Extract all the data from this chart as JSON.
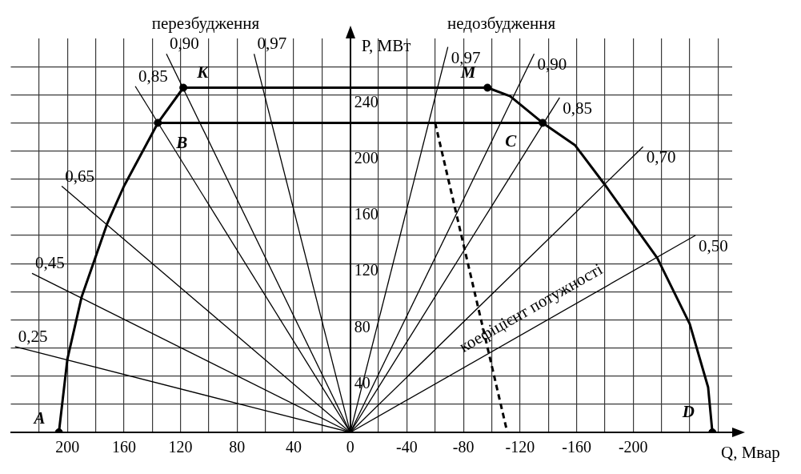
{
  "chart_data": {
    "type": "line",
    "xlabel": "Q, Мвар",
    "ylabel": "P, МВт",
    "xlim": [
      240,
      -270
    ],
    "ylim": [
      0,
      280
    ],
    "xticks": [
      {
        "value": 220,
        "label": null
      },
      200,
      {
        "value": 180,
        "label": null
      },
      160,
      {
        "value": 140,
        "label": null
      },
      120,
      {
        "value": 100,
        "label": null
      },
      80,
      {
        "value": 60,
        "label": null
      },
      40,
      {
        "value": 20,
        "label": null
      },
      0,
      {
        "value": -20,
        "label": null
      },
      -40,
      {
        "value": -60,
        "label": null
      },
      -80,
      {
        "value": -100,
        "label": null
      },
      -120,
      {
        "value": -140,
        "label": null
      },
      -160,
      {
        "value": -180,
        "label": null
      },
      -200,
      {
        "value": -220,
        "label": null
      },
      {
        "value": -240,
        "label": null
      },
      {
        "value": -260,
        "label": null
      }
    ],
    "yticks": [
      {
        "value": 0,
        "label": null
      },
      {
        "value": 20,
        "label": null
      },
      40,
      {
        "value": 60,
        "label": null
      },
      80,
      {
        "value": 100,
        "label": null
      },
      120,
      {
        "value": 140,
        "label": null
      },
      160,
      {
        "value": 180,
        "label": null
      },
      200,
      {
        "value": 220,
        "label": null
      },
      240,
      {
        "value": 260,
        "label": null
      }
    ],
    "grid": true,
    "legend": false,
    "line_style": "solid",
    "series": [
      {
        "color": "#000000",
        "x": [
          206,
          200,
          190,
          172,
          160,
          136,
          118
        ],
        "values": [
          0,
          52,
          96,
          148,
          175,
          220,
          245
        ]
      },
      {
        "color": "#000000",
        "x": [
          118,
          -97
        ],
        "values": [
          245,
          245
        ]
      },
      {
        "color": "#000000",
        "x": [
          -97,
          -113,
          -136,
          -159,
          -180,
          -217,
          -240,
          -253,
          -256
        ],
        "values": [
          245,
          239,
          220,
          204,
          176,
          124,
          77,
          32,
          0
        ]
      },
      {
        "color": "#000000",
        "x": [
          136,
          -136
        ],
        "values": [
          220,
          220
        ]
      },
      {
        "name": "0,25",
        "color": "#000000",
        "x": [
          0,
          237
        ],
        "values": [
          0,
          61
        ]
      },
      {
        "name": "0,45",
        "color": "#000000",
        "x": [
          0,
          225
        ],
        "values": [
          0,
          113
        ]
      },
      {
        "name": "0,65",
        "color": "#000000",
        "x": [
          0,
          204
        ],
        "values": [
          0,
          175
        ]
      },
      {
        "name": "0,85",
        "color": "#000000",
        "x": [
          0,
          152
        ],
        "values": [
          0,
          246
        ]
      },
      {
        "name": "0,90",
        "color": "#000000",
        "x": [
          0,
          130
        ],
        "values": [
          0,
          269
        ]
      },
      {
        "name": "0,97",
        "color": "#000000",
        "x": [
          0,
          68
        ],
        "values": [
          0,
          269
        ]
      },
      {
        "name": "0,97",
        "color": "#000000",
        "x": [
          0,
          -69
        ],
        "values": [
          0,
          274
        ]
      },
      {
        "name": "0,90",
        "color": "#000000",
        "x": [
          0,
          -130
        ],
        "values": [
          0,
          269
        ]
      },
      {
        "name": "0,85",
        "color": "#000000",
        "x": [
          0,
          -148
        ],
        "values": [
          0,
          238
        ]
      },
      {
        "name": "0,70",
        "color": "#000000",
        "x": [
          0,
          -207
        ],
        "values": [
          0,
          203
        ]
      },
      {
        "name": "0,50",
        "color": "#000000",
        "x": [
          0,
          -244
        ],
        "values": [
          0,
          140
        ]
      },
      {
        "color": "#000000",
        "line_style": "dashed",
        "x": [
          -60,
          -111
        ],
        "values": [
          220,
          0
        ]
      },
      {
        "type": "scatter",
        "marker": "circle",
        "color": "#000000",
        "x": [
          206,
          136,
          118,
          -97,
          -136,
          -256
        ],
        "values": [
          0,
          220,
          245,
          245,
          220,
          0
        ]
      }
    ],
    "annotations": [
      "A",
      "B",
      "K",
      "M",
      "C",
      "D",
      "коефіцієнт потужності",
      "перезбудження",
      "недозбудження"
    ]
  }
}
